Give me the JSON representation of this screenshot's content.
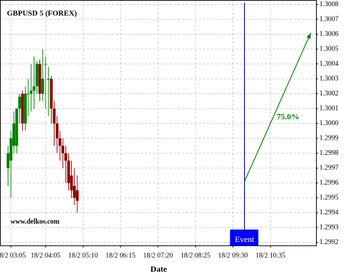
{
  "chart_data": {
    "type": "candlestick",
    "title": "GBPUSD 5 (FOREX)",
    "x_label": "Date",
    "watermark": "www.delkos.com",
    "up_color": "#008000",
    "down_color": "#8b0000",
    "grid": true,
    "x": [
      "18/2 03:00",
      "18/2 03:05",
      "18/2 03:10",
      "18/2 03:15",
      "18/2 03:20",
      "18/2 03:25",
      "18/2 03:30",
      "18/2 03:35",
      "18/2 03:40",
      "18/2 03:45",
      "18/2 03:50",
      "18/2 03:55",
      "18/2 04:00",
      "18/2 04:05",
      "18/2 04:10",
      "18/2 04:15",
      "18/2 04:20",
      "18/2 04:25",
      "18/2 04:30",
      "18/2 04:35",
      "18/2 04:40",
      "18/2 04:45",
      "18/2 04:50",
      "18/2 04:55",
      "18/2 05:00"
    ],
    "open": [
      1.2997,
      1.29975,
      1.29985,
      1.29985,
      1.3001,
      1.3002,
      1.3,
      1.3002,
      1.3002,
      1.30022,
      1.30025,
      1.3004,
      1.3002,
      1.3004,
      1.3003,
      1.3003,
      1.3001,
      1.3,
      1.2999,
      1.29985,
      1.2998,
      1.29975,
      1.29965,
      1.29958,
      1.29955
    ],
    "high": [
      1.29985,
      1.29995,
      1.30008,
      1.3001,
      1.3002,
      1.30022,
      1.30025,
      1.3003,
      1.3004,
      1.30045,
      1.30042,
      1.30043,
      1.3005,
      1.30045,
      1.30038,
      1.30032,
      1.30015,
      1.30005,
      1.29995,
      1.2999,
      1.29985,
      1.2998,
      1.29975,
      1.2997,
      1.29965
    ],
    "low": [
      1.29958,
      1.2995,
      1.2998,
      1.2998,
      1.3,
      1.29995,
      1.29995,
      1.30005,
      1.30008,
      1.3001,
      1.3002,
      1.30015,
      1.30015,
      1.3001,
      1.30005,
      1.3,
      1.29985,
      1.2998,
      1.29975,
      1.2997,
      1.2996,
      1.29955,
      1.2995,
      1.29945,
      1.2994
    ],
    "close": [
      1.2998,
      1.2999,
      1.3,
      1.3001,
      1.30018,
      1.3,
      1.3002,
      1.3002,
      1.30022,
      1.30025,
      1.3004,
      1.3002,
      1.3003,
      1.3004,
      1.3003,
      1.3001,
      1.3,
      1.2999,
      1.29985,
      1.2998,
      1.29975,
      1.2996,
      1.29955,
      1.2995,
      1.29948
    ],
    "xlim": [
      "18/2 02:46",
      "18/2 11:54"
    ],
    "xticks": [
      "18/2 03:05",
      "18/2 04:05",
      "18/2 05:10",
      "18/2 06:15",
      "18/2 07:20",
      "18/2 08:25",
      "18/2 09:30",
      "18/2 10:35"
    ],
    "ylim": [
      1.29918,
      1.30083
    ],
    "yticks": [
      1.2992,
      1.2993,
      1.2994,
      1.2995,
      1.2996,
      1.2997,
      1.2998,
      1.2999,
      {
        "value": 1.3,
        "label": "1.3000"
      },
      1.3001,
      1.3002,
      1.3003,
      1.3004,
      1.3005,
      1.3006,
      1.3007,
      1.3008
    ],
    "event": {
      "label": "Event",
      "x": "18/2 09:50",
      "color": "#000080",
      "box_color": "#0000ff"
    },
    "forecast": {
      "text": "75.0%",
      "color": "#008000",
      "x": [
        "18/2 09:50",
        "18/2 11:45"
      ],
      "values": [
        1.29961,
        1.30061
      ]
    }
  }
}
